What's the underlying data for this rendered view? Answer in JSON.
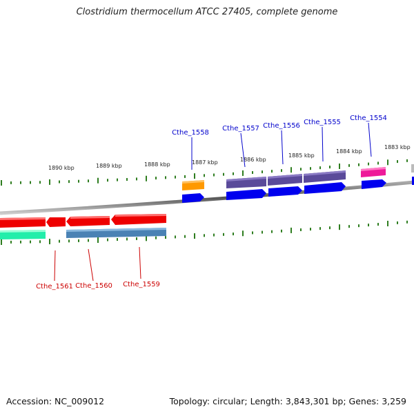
{
  "title": "Clostridium thermocellum ATCC 27405, complete genome",
  "footer": {
    "accession": "Accession: NC_009012",
    "summary": "Topology: circular; Length: 3,843,301 bp; Genes: 3,259"
  },
  "ticks": [
    {
      "label": "1890 kbp"
    },
    {
      "label": "1889 kbp"
    },
    {
      "label": "1888 kbp"
    },
    {
      "label": "1887 kbp"
    },
    {
      "label": "1886 kbp"
    },
    {
      "label": "1885 kbp"
    },
    {
      "label": "1884 kbp"
    },
    {
      "label": "1883 kbp"
    }
  ],
  "gene_labels": [
    {
      "name": "Cthe_1558",
      "color": "#0000cc"
    },
    {
      "name": "Cthe_1557",
      "color": "#0000cc"
    },
    {
      "name": "Cthe_1556",
      "color": "#0000cc"
    },
    {
      "name": "Cthe_1555",
      "color": "#0000cc"
    },
    {
      "name": "Cthe_1554",
      "color": "#0000cc"
    },
    {
      "name": "Cthe_1561",
      "color": "#cc0000"
    },
    {
      "name": "Cthe_1560",
      "color": "#cc0000"
    },
    {
      "name": "Cthe_1559",
      "color": "#cc0000"
    }
  ],
  "colors": {
    "backbone": "#7a7a7a",
    "tick": "#2e7d1f",
    "forward_cds": "#0000ee",
    "reverse_cds": "#ee0000",
    "purple_feature": "#5a4a9a",
    "orange_feature": "#ff9900",
    "pink_feature": "#ee1a9a",
    "teal_feature": "#22eeaa",
    "steel_feature": "#4a82b4"
  }
}
